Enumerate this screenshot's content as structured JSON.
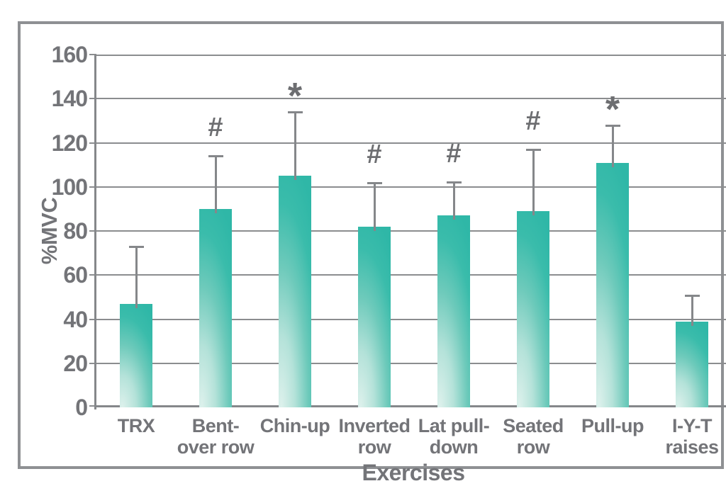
{
  "chart_data": {
    "type": "bar",
    "title": "",
    "xlabel": "Exercises",
    "ylabel": "%MVC",
    "ylim": [
      0,
      160
    ],
    "ytick_step": 20,
    "yticks": [
      0,
      20,
      40,
      60,
      80,
      100,
      120,
      140,
      160
    ],
    "grid": true,
    "legend_position": "none",
    "categories": [
      "TRX",
      "Bent-over row",
      "Chin-up",
      "Inverted row",
      "Lat pull-down",
      "Seated row",
      "Pull-up",
      "I-Y-T raises"
    ],
    "category_label_lines": [
      [
        "TRX"
      ],
      [
        "Bent-",
        "over row"
      ],
      [
        "Chin-up"
      ],
      [
        "Inverted",
        "row"
      ],
      [
        "Lat pull-",
        "down"
      ],
      [
        "Seated",
        "row"
      ],
      [
        "Pull-up"
      ],
      [
        "I-Y-T",
        "raises"
      ]
    ],
    "series": [
      {
        "name": "%MVC",
        "values": [
          47,
          90,
          105,
          82,
          87,
          89,
          111,
          39
        ]
      }
    ],
    "error_bars_upper": [
      26,
      24,
      29,
      20,
      15,
      28,
      17,
      12
    ],
    "significance_markers": [
      "",
      "#",
      "*",
      "#",
      "#",
      "#",
      "*",
      ""
    ],
    "colors": {
      "bar_gradient_light": "#ddf1ec",
      "bar_gradient_mid": "#9edacf",
      "bar_gradient_dark": "#2fb7a7",
      "grid_line": "#8b8d8f",
      "axis_line": "#85878a",
      "frame": "#8e9093",
      "text": "#737478",
      "error_bar": "#85878a",
      "marker": "#6d6e71"
    }
  }
}
